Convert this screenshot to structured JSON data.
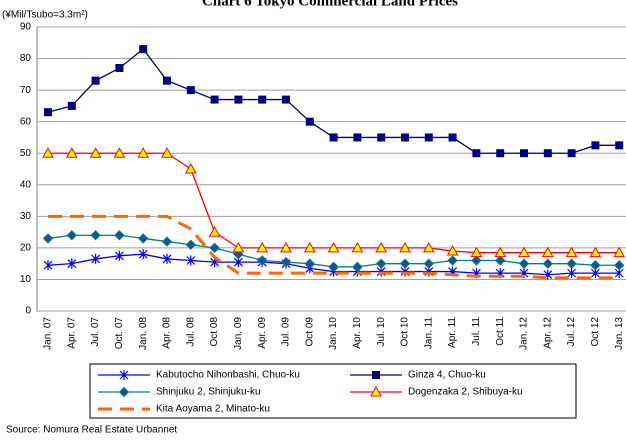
{
  "chart_data": {
    "type": "line",
    "title": "Chart 6 Tokyo Commercial Land Prices",
    "y_label": "(¥Mil/Tsubo=3.3m²)",
    "source": "Source: Nomura Real Estate Urbannet",
    "categories": [
      "Jan. 07",
      "Apr. 07",
      "Jul. 07",
      "Oct. 07",
      "Jan. 08",
      "Apr. 08",
      "Jul. 08",
      "Oct 08",
      "Jan. 09",
      "Apr. 09",
      "Jul. 09",
      "Oct 09",
      "Jan. 10",
      "Apr. 10",
      "Jul. 10",
      "Oct 10",
      "Jan. 11",
      "Apr. 11",
      "Jul. 11",
      "Oct 11",
      "Jan. 12",
      "Apr. 12",
      "Jul. 12",
      "Oct 12",
      "Jan. 13"
    ],
    "ylim": [
      0,
      90
    ],
    "yticks": [
      0,
      10,
      20,
      30,
      40,
      50,
      60,
      70,
      80,
      90
    ],
    "grid": true,
    "series": [
      {
        "name": "Kabutocho Nihonbashi, Chuo-ku",
        "color": "#0000ff",
        "marker": "star",
        "values": [
          14.5,
          15,
          16.5,
          17.5,
          18,
          16.5,
          16,
          15.5,
          15.5,
          15.5,
          15,
          13.5,
          12.5,
          12.5,
          12.5,
          12.5,
          12.5,
          12.5,
          12,
          12,
          12,
          11.5,
          12,
          12,
          12
        ]
      },
      {
        "name": "Ginza 4, Chuo-ku",
        "color": "#000080",
        "marker": "square",
        "values": [
          63,
          65,
          73,
          77,
          83,
          73,
          70,
          67,
          67,
          67,
          67,
          60,
          55,
          55,
          55,
          55,
          55,
          55,
          50,
          50,
          50,
          50,
          50,
          52.5,
          52.5
        ]
      },
      {
        "name": "Shinjuku 2, Shinjuku-ku",
        "color": "#008080",
        "marker": "diamond",
        "values": [
          23,
          24,
          24,
          24,
          23,
          22,
          21,
          20,
          18,
          16,
          15.5,
          15,
          14,
          14,
          15,
          15,
          15,
          16,
          16,
          16,
          15,
          15,
          15,
          14.5,
          14.5
        ]
      },
      {
        "name": "Dogenzaka 2, Shibuya-ku",
        "color": "#ff0000",
        "marker": "triangle",
        "values": [
          50,
          50,
          50,
          50,
          50,
          50,
          45,
          25,
          20,
          20,
          20,
          20,
          20,
          20,
          20,
          20,
          20,
          19,
          18.5,
          18.5,
          18.5,
          18.5,
          18.5,
          18.5,
          18.5
        ]
      },
      {
        "name": "Kita Aoyama 2, Minato-ku",
        "color": "#ff6600",
        "marker": "none",
        "dashed": true,
        "values": [
          30,
          30,
          30,
          30,
          30,
          30,
          26,
          17,
          12,
          12,
          12,
          12,
          12,
          12,
          12,
          12,
          12,
          11.5,
          11,
          11,
          11,
          10.5,
          10.5,
          10.5,
          10.5
        ]
      }
    ]
  }
}
